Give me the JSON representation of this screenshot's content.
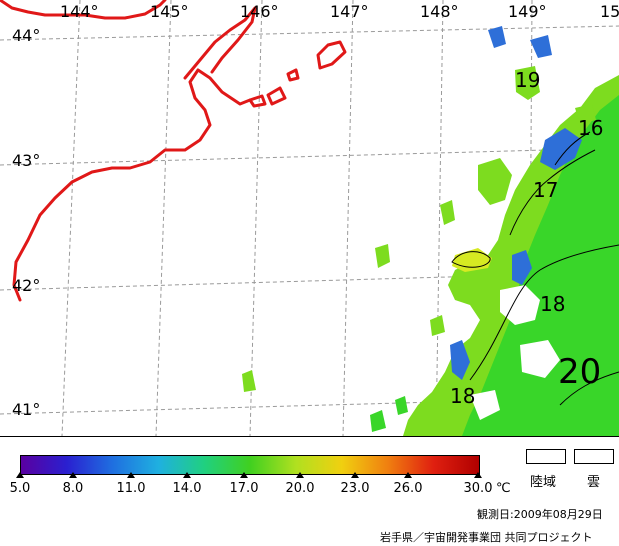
{
  "map": {
    "longitude_labels": [
      "144°",
      "145°",
      "146°",
      "147°",
      "148°",
      "149°",
      "15"
    ],
    "latitude_labels": [
      "44°",
      "43°",
      "42°",
      "41°"
    ],
    "contour_labels": [
      "19",
      "16",
      "17",
      "18",
      "20",
      "18"
    ],
    "colors": {
      "coastline": "#e01818",
      "grid": "#9a9a9a",
      "sst_warm": "#7ddc1f",
      "sst_mid": "#39d629",
      "sst_cool": "#2e6fd8",
      "sst_yellow": "#d6ea22"
    }
  },
  "colorbar": {
    "tick_labels": [
      "5.0",
      "8.0",
      "11.0",
      "14.0",
      "17.0",
      "20.0",
      "23.0",
      "26.0",
      "30.0"
    ],
    "unit": "℃",
    "gradient": [
      "#5a00a0",
      "#2a20d0",
      "#1f6fe0",
      "#1fb0e0",
      "#20d080",
      "#40d020",
      "#b0e020",
      "#f0d010",
      "#f08010",
      "#e02010",
      "#b00000"
    ]
  },
  "legend": {
    "land_label": "陸域",
    "cloud_label": "雲"
  },
  "footer": {
    "observation_date": "観測日:2009年08月29日",
    "credit": "岩手県／宇宙開発事業団 共同プロジェクト"
  }
}
